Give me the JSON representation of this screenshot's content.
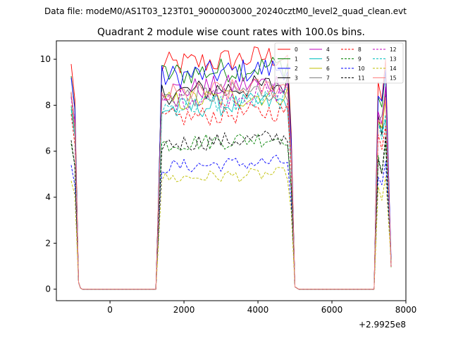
{
  "chart_data": {
    "type": "line",
    "suptitle": "Data file: modeM0/AS1T03_123T01_9000003000_20240cztM0_level2_quad_clean.evt",
    "title": "Quadrant 2 module wise count rates with 100.0s bins.",
    "xlabel": "",
    "ylabel": "",
    "x_offset_label": "+2.9925e8",
    "xlim": [
      -1450,
      8000
    ],
    "ylim": [
      -0.5,
      10.8
    ],
    "xticks": [
      0,
      2000,
      4000,
      6000,
      8000
    ],
    "yticks": [
      0,
      2,
      4,
      6,
      8,
      10
    ],
    "xtick_labels": [
      "0",
      "2000",
      "4000",
      "6000",
      "8000"
    ],
    "ytick_labels": [
      "0",
      "2",
      "4",
      "6",
      "8",
      "10"
    ],
    "grid": false,
    "legend_position": "top-right",
    "active_segments": [
      [
        1300,
        4900
      ],
      [
        7200,
        7600
      ]
    ],
    "series": [
      {
        "name": "0",
        "color": "#ff0000",
        "style": "solid",
        "level": 9.7
      },
      {
        "name": "1",
        "color": "#008000",
        "style": "solid",
        "level": 9.3
      },
      {
        "name": "2",
        "color": "#0000ff",
        "style": "solid",
        "level": 9.2
      },
      {
        "name": "3",
        "color": "#000000",
        "style": "solid",
        "level": 8.5
      },
      {
        "name": "4",
        "color": "#bf00bf",
        "style": "solid",
        "level": 8.6
      },
      {
        "name": "5",
        "color": "#00bfbf",
        "style": "solid",
        "level": 7.8
      },
      {
        "name": "6",
        "color": "#bfbf00",
        "style": "solid",
        "level": 8.1
      },
      {
        "name": "7",
        "color": "#808080",
        "style": "solid",
        "level": 8.3
      },
      {
        "name": "8",
        "color": "#ff0000",
        "style": "dashed",
        "level": 7.4
      },
      {
        "name": "9",
        "color": "#008000",
        "style": "dashed",
        "level": 6.3
      },
      {
        "name": "10",
        "color": "#0000ff",
        "style": "dashed",
        "level": 5.3
      },
      {
        "name": "11",
        "color": "#000000",
        "style": "dashed",
        "level": 6.3
      },
      {
        "name": "12",
        "color": "#bf00bf",
        "style": "dashed",
        "level": 8.2
      },
      {
        "name": "13",
        "color": "#00bfbf",
        "style": "dashed",
        "level": 7.9
      },
      {
        "name": "14",
        "color": "#bfbf00",
        "style": "dashed",
        "level": 4.8
      },
      {
        "name": "15",
        "color": "#ff8080",
        "style": "solid",
        "level": 8.4
      }
    ]
  }
}
